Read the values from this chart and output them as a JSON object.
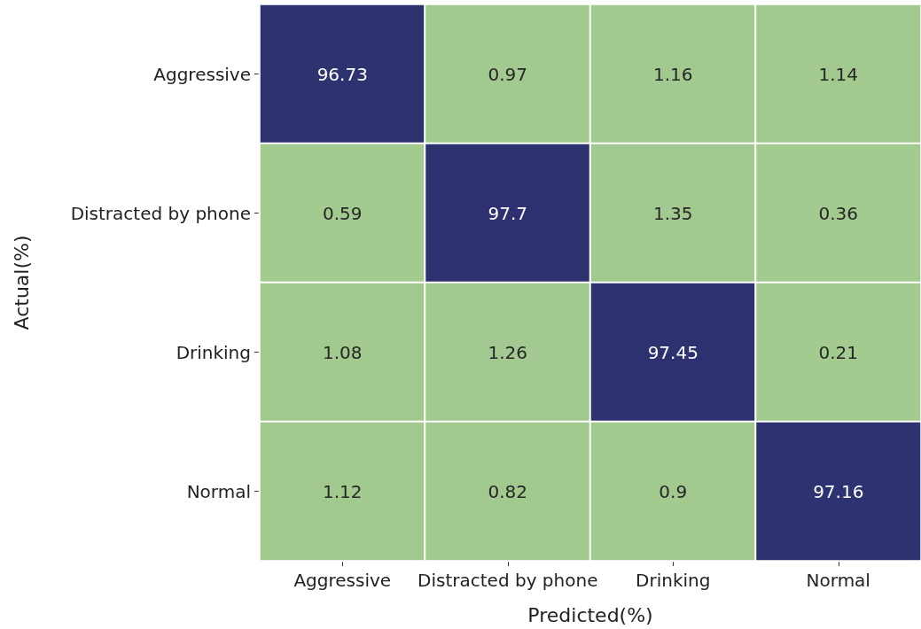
{
  "chart_data": {
    "type": "heatmap",
    "xlabel": "Predicted(%)",
    "ylabel": "Actual(%)",
    "categories": [
      "Aggressive",
      "Distracted by phone",
      "Drinking",
      "Normal"
    ],
    "y_categories": [
      "Aggressive",
      "Distracted by phone",
      "Drinking",
      "Normal"
    ],
    "cells": [
      [
        96.73,
        0.97,
        1.16,
        1.14
      ],
      [
        0.59,
        97.7,
        1.35,
        0.36
      ],
      [
        1.08,
        1.26,
        97.45,
        0.21
      ],
      [
        1.12,
        0.82,
        0.9,
        97.16
      ]
    ],
    "colors": [
      "#a3cb8f",
      "#2d3170"
    ],
    "data_labels": true
  }
}
